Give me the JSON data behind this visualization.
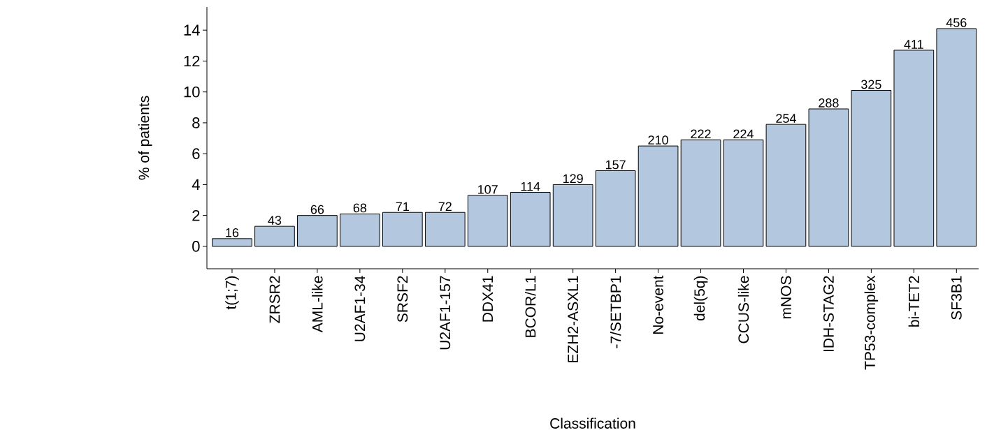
{
  "chart_data": {
    "type": "bar",
    "xlabel": "Classification",
    "ylabel": "% of patients",
    "categories": [
      "t(1;7)",
      "ZRSR2",
      "AML-like",
      "U2AF1-34",
      "SRSF2",
      "U2AF1-157",
      "DDX41",
      "BCOR/L1",
      "EZH2-ASXL1",
      "-7/SETBP1",
      "No-event",
      "del(5q)",
      "CCUS-like",
      "mNOS",
      "IDH-STAG2",
      "TP53-complex",
      "bi-TET2",
      "SF3B1"
    ],
    "values": [
      0.5,
      1.3,
      2.0,
      2.1,
      2.2,
      2.2,
      3.3,
      3.5,
      4.0,
      4.9,
      6.5,
      6.9,
      6.9,
      7.9,
      8.9,
      10.1,
      12.7,
      14.1
    ],
    "annotations": [
      {
        "text": "16",
        "x": "t(1;7)",
        "y": 0.5
      },
      {
        "text": "43",
        "x": "ZRSR2",
        "y": 1.3
      },
      {
        "text": "66",
        "x": "AML-like",
        "y": 2.0
      },
      {
        "text": "68",
        "x": "U2AF1-34",
        "y": 2.1
      },
      {
        "text": "71",
        "x": "SRSF2",
        "y": 2.2
      },
      {
        "text": "72",
        "x": "U2AF1-157",
        "y": 2.2
      },
      {
        "text": "107",
        "x": "DDX41",
        "y": 3.3
      },
      {
        "text": "114",
        "x": "BCOR/L1",
        "y": 3.5
      },
      {
        "text": "129",
        "x": "EZH2-ASXL1",
        "y": 4.0
      },
      {
        "text": "157",
        "x": "-7/SETBP1",
        "y": 4.9
      },
      {
        "text": "210",
        "x": "No-event",
        "y": 6.5
      },
      {
        "text": "222",
        "x": "del(5q)",
        "y": 6.9
      },
      {
        "text": "224",
        "x": "CCUS-like",
        "y": 6.9
      },
      {
        "text": "254",
        "x": "mNOS",
        "y": 7.9
      },
      {
        "text": "288",
        "x": "IDH-STAG2",
        "y": 8.9
      },
      {
        "text": "325",
        "x": "TP53-complex",
        "y": 10.1
      },
      {
        "text": "411",
        "x": "bi-TET2",
        "y": 12.7
      },
      {
        "text": "456",
        "x": "SF3B1",
        "y": 14.1
      }
    ],
    "color": "#b3c8df",
    "ylim": [
      -1.45,
      15.5
    ],
    "yticks": [
      0,
      2,
      4,
      6,
      8,
      10,
      12,
      14
    ],
    "grid": false
  }
}
